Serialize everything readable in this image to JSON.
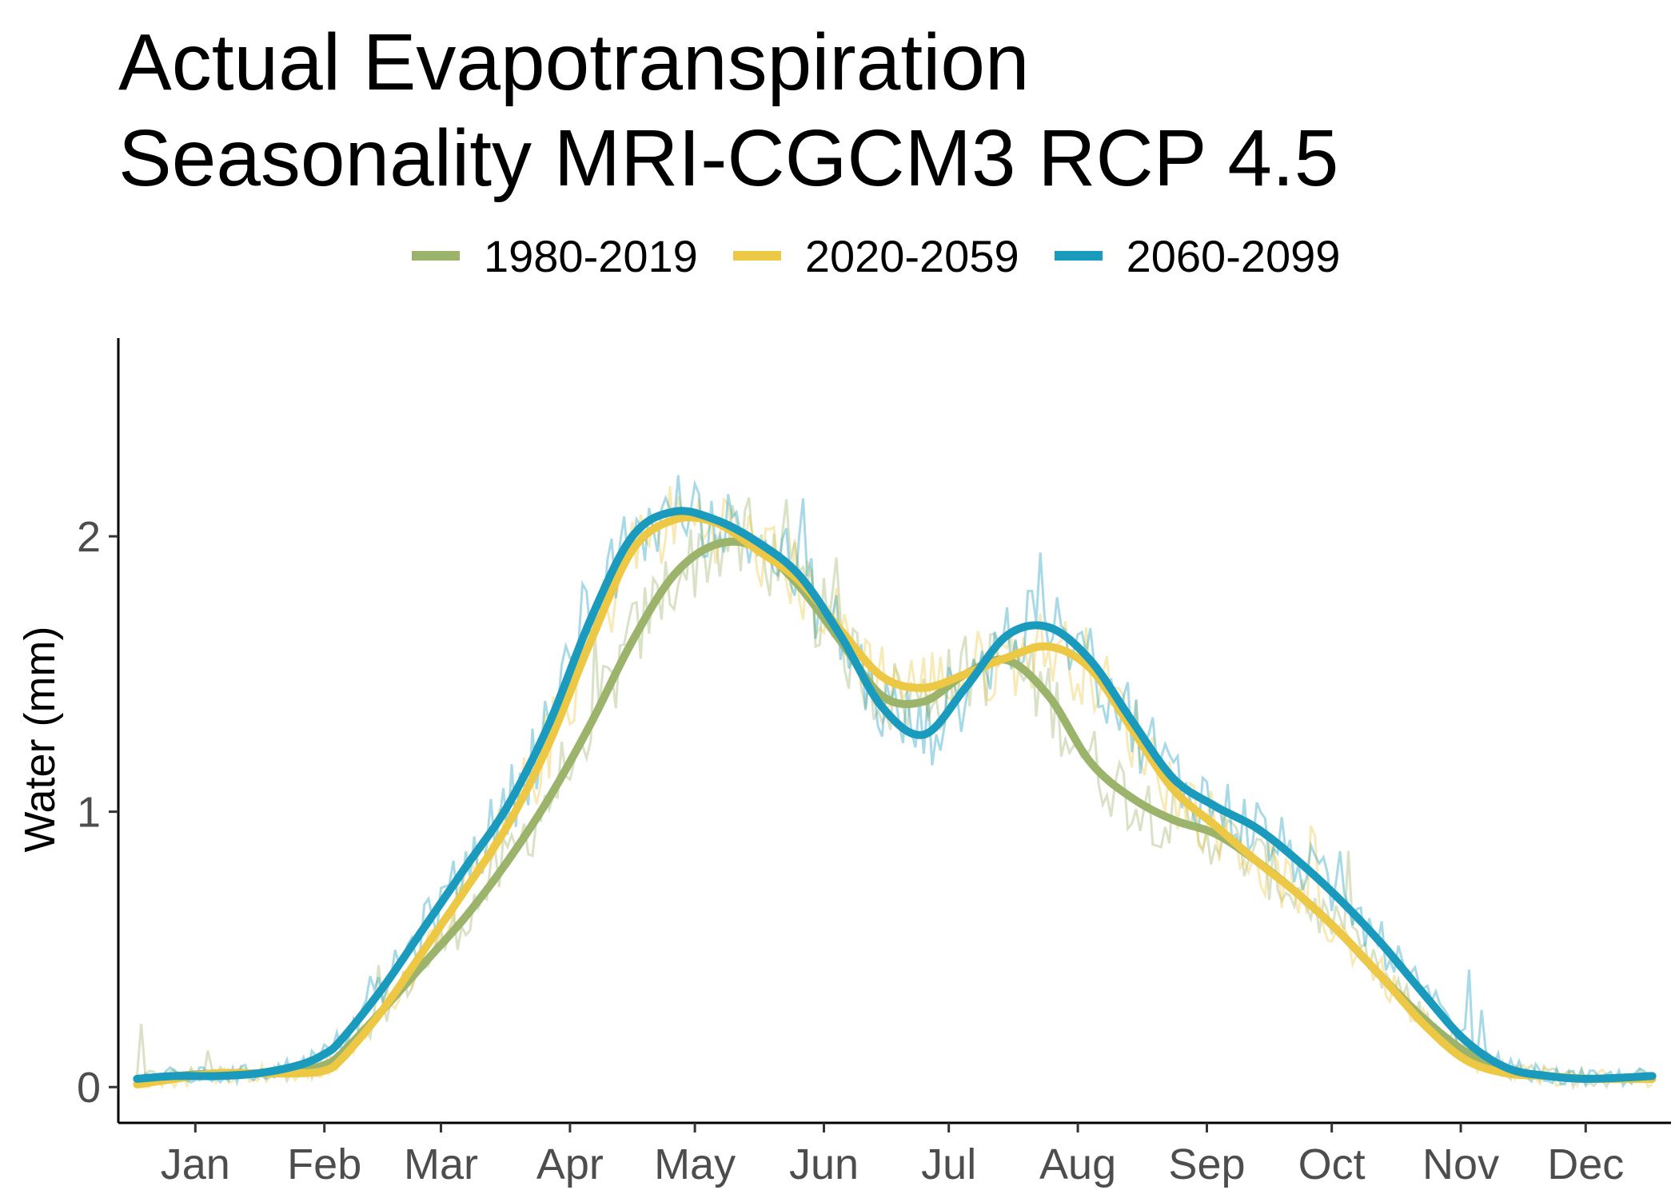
{
  "chart_data": {
    "type": "line",
    "title_lines": [
      "Actual Evapotranspiration",
      "Seasonality MRI-CGCM3 RCP 4.5"
    ],
    "xlabel": "",
    "ylabel": "Water (mm)",
    "x_unit": "day of year",
    "x_ticks": [
      {
        "label": "Jan",
        "day": 15
      },
      {
        "label": "Feb",
        "day": 46
      },
      {
        "label": "Mar",
        "day": 74
      },
      {
        "label": "Apr",
        "day": 105
      },
      {
        "label": "May",
        "day": 135
      },
      {
        "label": "Jun",
        "day": 166
      },
      {
        "label": "Jul",
        "day": 196
      },
      {
        "label": "Aug",
        "day": 227
      },
      {
        "label": "Sep",
        "day": 258
      },
      {
        "label": "Oct",
        "day": 288
      },
      {
        "label": "Nov",
        "day": 319
      },
      {
        "label": "Dec",
        "day": 349
      }
    ],
    "y_ticks": [
      0,
      1,
      2
    ],
    "xlim": [
      -3.5,
      369.5
    ],
    "ylim": [
      -0.13,
      2.72
    ],
    "grid": false,
    "legend_position": "top",
    "x": [
      1,
      10,
      20,
      30,
      40,
      46,
      50,
      60,
      70,
      80,
      90,
      100,
      110,
      120,
      130,
      140,
      150,
      160,
      170,
      180,
      190,
      200,
      210,
      220,
      230,
      240,
      250,
      260,
      270,
      280,
      290,
      300,
      310,
      320,
      330,
      340,
      350,
      365
    ],
    "series": [
      {
        "name": "1980-2019",
        "color": "#9bb36a",
        "values": [
          0.03,
          0.04,
          0.05,
          0.05,
          0.06,
          0.08,
          0.12,
          0.28,
          0.45,
          0.62,
          0.82,
          1.05,
          1.32,
          1.62,
          1.86,
          1.97,
          1.96,
          1.82,
          1.62,
          1.42,
          1.4,
          1.5,
          1.55,
          1.42,
          1.18,
          1.05,
          0.97,
          0.92,
          0.82,
          0.7,
          0.56,
          0.4,
          0.25,
          0.13,
          0.06,
          0.04,
          0.03,
          0.04
        ]
      },
      {
        "name": "2020-2059",
        "color": "#ecc844",
        "values": [
          0.01,
          0.03,
          0.05,
          0.05,
          0.05,
          0.06,
          0.1,
          0.28,
          0.5,
          0.72,
          0.95,
          1.25,
          1.62,
          1.95,
          2.06,
          2.05,
          1.95,
          1.84,
          1.66,
          1.49,
          1.45,
          1.5,
          1.56,
          1.6,
          1.52,
          1.3,
          1.08,
          0.95,
          0.82,
          0.7,
          0.56,
          0.4,
          0.23,
          0.1,
          0.05,
          0.04,
          0.03,
          0.03
        ]
      },
      {
        "name": "2060-2099",
        "color": "#1a9bbd",
        "values": [
          0.03,
          0.04,
          0.04,
          0.05,
          0.08,
          0.12,
          0.17,
          0.36,
          0.58,
          0.8,
          1.02,
          1.32,
          1.7,
          2.0,
          2.09,
          2.06,
          1.98,
          1.86,
          1.64,
          1.38,
          1.28,
          1.45,
          1.64,
          1.67,
          1.55,
          1.33,
          1.12,
          1.02,
          0.94,
          0.82,
          0.68,
          0.52,
          0.34,
          0.17,
          0.07,
          0.04,
          0.03,
          0.04
        ]
      }
    ]
  }
}
